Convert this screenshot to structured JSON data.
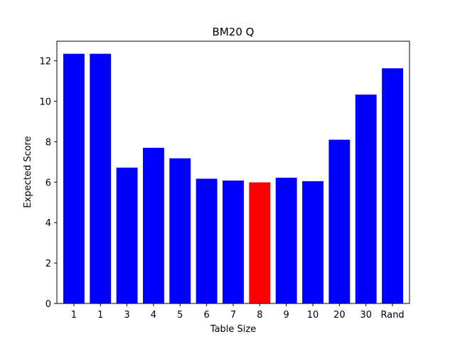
{
  "chart_data": {
    "type": "bar",
    "title": "BM20 Q",
    "xlabel": "Table Size",
    "ylabel": "Expected Score",
    "categories": [
      "1",
      "1",
      "3",
      "4",
      "5",
      "6",
      "7",
      "8",
      "9",
      "10",
      "20",
      "30",
      "Rand"
    ],
    "values": [
      12.35,
      12.35,
      6.72,
      7.7,
      7.18,
      6.17,
      6.08,
      5.99,
      6.22,
      6.05,
      8.1,
      10.33,
      11.63
    ],
    "colors": [
      "#0000ff",
      "#0000ff",
      "#0000ff",
      "#0000ff",
      "#0000ff",
      "#0000ff",
      "#0000ff",
      "#ff0000",
      "#0000ff",
      "#0000ff",
      "#0000ff",
      "#0000ff",
      "#0000ff"
    ],
    "ylim": [
      0,
      12.97
    ],
    "yticks": [
      0,
      2,
      4,
      6,
      8,
      10,
      12
    ],
    "grid": false,
    "legend": "none"
  }
}
